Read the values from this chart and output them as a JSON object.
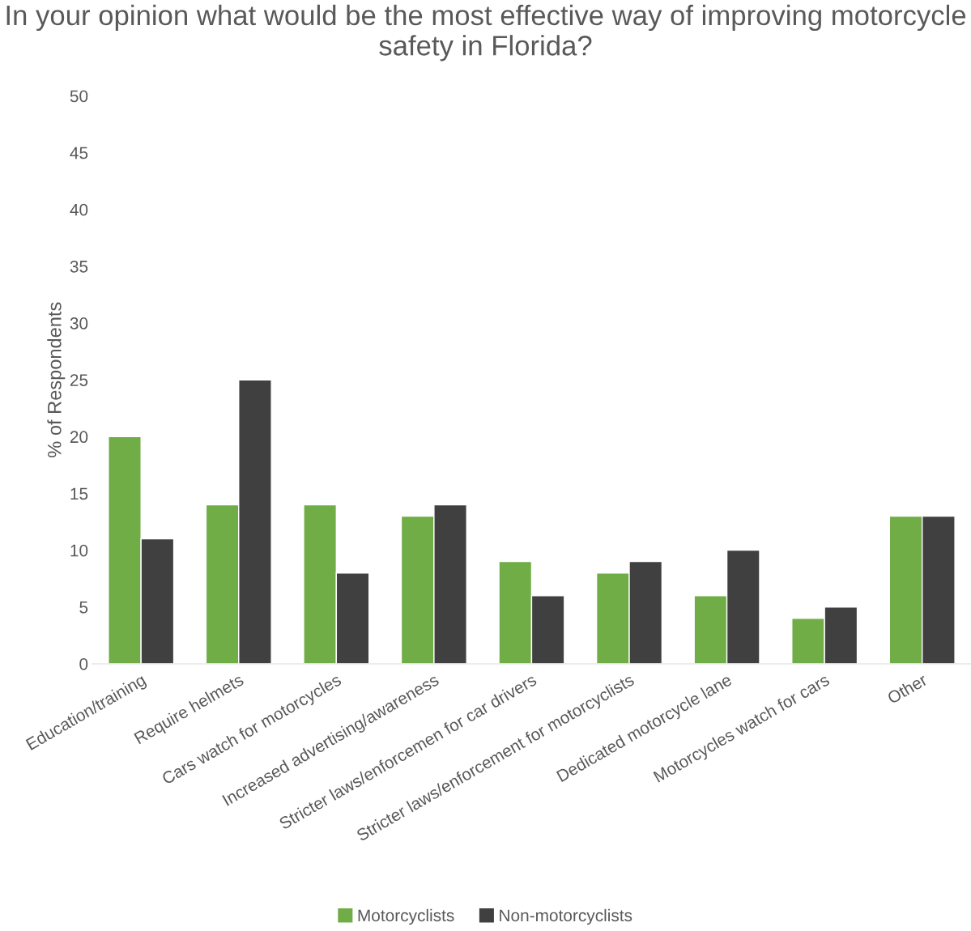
{
  "chart_data": {
    "type": "bar",
    "title": "In your opinion what would be the most effective way of improving motorcycle safety in Florida?",
    "ylabel": "% of Respondents",
    "categories": [
      "Education/training",
      "Require helmets",
      "Cars watch for motorcycles",
      "Increased advertising/awareness",
      "Stricter laws/enforcemen for car drivers",
      "Stricter laws/enforcement for motorcyclists",
      "Dedicated motorcycle lane",
      "Motorcycles watch for cars",
      "Other"
    ],
    "series": [
      {
        "name": "Motorcyclists",
        "color": "#70ad47",
        "values": [
          20,
          14,
          14,
          13,
          9,
          8,
          6,
          4,
          13
        ]
      },
      {
        "name": "Non-motorcyclists",
        "color": "#404040",
        "values": [
          11,
          25,
          8,
          14,
          6,
          9,
          10,
          5,
          13
        ]
      }
    ],
    "ylim": [
      0,
      50
    ],
    "yticks": [
      0,
      5,
      10,
      15,
      20,
      25,
      30,
      35,
      40,
      45,
      50
    ],
    "grid": false,
    "legend": "bottom"
  }
}
